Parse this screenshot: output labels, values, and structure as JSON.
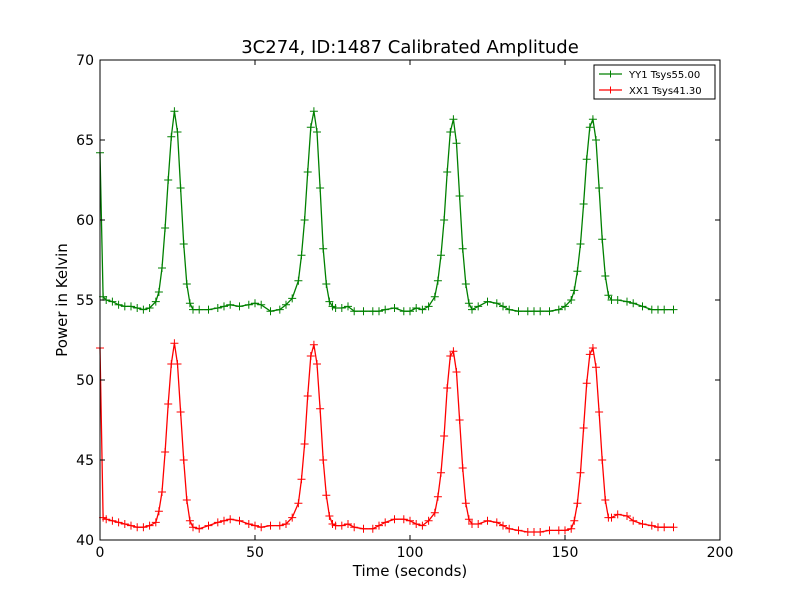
{
  "chart_data": {
    "type": "line",
    "title": "3C274, ID:1487 Calibrated Amplitude",
    "xlabel": "Time (seconds)",
    "ylabel": "Power in Kelvin",
    "xlim": [
      0,
      200
    ],
    "ylim": [
      40,
      70
    ],
    "xticks": [
      0,
      50,
      100,
      150,
      200
    ],
    "yticks": [
      40,
      45,
      50,
      55,
      60,
      65,
      70
    ],
    "grid": false,
    "legend_position": "top-right",
    "series": [
      {
        "name": "YY1 Tsys55.00",
        "color": "#008000",
        "marker": "+",
        "x": [
          0,
          1,
          2,
          4,
          6,
          8,
          10,
          12,
          14,
          16,
          18,
          19,
          20,
          21,
          22,
          23,
          24,
          25,
          26,
          27,
          28,
          29,
          30,
          32,
          35,
          38,
          40,
          42,
          45,
          48,
          50,
          52,
          55,
          58,
          60,
          62,
          64,
          65,
          66,
          67,
          68,
          69,
          70,
          71,
          72,
          73,
          74,
          75,
          76,
          78,
          80,
          82,
          85,
          88,
          90,
          92,
          95,
          98,
          100,
          102,
          104,
          106,
          108,
          109,
          110,
          111,
          112,
          113,
          114,
          115,
          116,
          117,
          118,
          119,
          120,
          122,
          125,
          128,
          130,
          132,
          135,
          138,
          140,
          142,
          145,
          148,
          150,
          152,
          153,
          154,
          155,
          156,
          157,
          158,
          159,
          160,
          161,
          162,
          163,
          164,
          165,
          167,
          170,
          172,
          175,
          178,
          180,
          182,
          185
        ],
        "y": [
          64.2,
          55.2,
          55.0,
          54.9,
          54.7,
          54.6,
          54.6,
          54.5,
          54.4,
          54.5,
          54.9,
          55.5,
          57.0,
          59.5,
          62.5,
          65.2,
          66.8,
          65.5,
          62.0,
          58.5,
          56.0,
          54.8,
          54.4,
          54.4,
          54.4,
          54.5,
          54.6,
          54.7,
          54.6,
          54.7,
          54.8,
          54.7,
          54.3,
          54.4,
          54.7,
          55.1,
          56.2,
          57.8,
          60.0,
          63.0,
          65.8,
          66.8,
          65.5,
          62.0,
          58.2,
          56.0,
          54.9,
          54.6,
          54.5,
          54.5,
          54.6,
          54.3,
          54.3,
          54.3,
          54.3,
          54.4,
          54.5,
          54.3,
          54.3,
          54.5,
          54.4,
          54.6,
          55.2,
          56.2,
          57.8,
          60.0,
          63.0,
          65.5,
          66.3,
          64.8,
          61.5,
          58.2,
          56.0,
          54.8,
          54.4,
          54.6,
          54.9,
          54.8,
          54.6,
          54.4,
          54.3,
          54.3,
          54.3,
          54.3,
          54.3,
          54.4,
          54.6,
          55.0,
          55.6,
          56.8,
          58.5,
          61.0,
          63.8,
          65.8,
          66.3,
          65.0,
          62.0,
          58.8,
          56.5,
          55.3,
          55.0,
          55.0,
          54.9,
          54.8,
          54.6,
          54.4,
          54.4,
          54.4,
          54.4
        ]
      },
      {
        "name": "XX1 Tsys41.30",
        "color": "#ff0000",
        "marker": "+",
        "x": [
          0,
          1,
          2,
          4,
          6,
          8,
          10,
          12,
          14,
          16,
          18,
          19,
          20,
          21,
          22,
          23,
          24,
          25,
          26,
          27,
          28,
          29,
          30,
          32,
          35,
          38,
          40,
          42,
          45,
          48,
          50,
          52,
          55,
          58,
          60,
          62,
          64,
          65,
          66,
          67,
          68,
          69,
          70,
          71,
          72,
          73,
          74,
          75,
          76,
          78,
          80,
          82,
          85,
          88,
          90,
          92,
          95,
          98,
          100,
          102,
          104,
          106,
          108,
          109,
          110,
          111,
          112,
          113,
          114,
          115,
          116,
          117,
          118,
          119,
          120,
          122,
          125,
          128,
          130,
          132,
          135,
          138,
          140,
          142,
          145,
          148,
          150,
          152,
          153,
          154,
          155,
          156,
          157,
          158,
          159,
          160,
          161,
          162,
          163,
          164,
          165,
          167,
          170,
          172,
          175,
          178,
          180,
          182,
          185
        ],
        "y": [
          52.0,
          41.4,
          41.3,
          41.2,
          41.1,
          41.0,
          40.9,
          40.8,
          40.8,
          40.9,
          41.1,
          41.8,
          43.0,
          45.5,
          48.5,
          51.0,
          52.3,
          51.0,
          48.0,
          45.0,
          42.5,
          41.2,
          40.8,
          40.7,
          40.9,
          41.1,
          41.2,
          41.3,
          41.2,
          41.0,
          40.9,
          40.8,
          40.9,
          40.9,
          41.0,
          41.4,
          42.3,
          43.8,
          46.0,
          49.0,
          51.5,
          52.2,
          51.0,
          48.2,
          45.0,
          42.8,
          41.5,
          41.0,
          40.9,
          40.9,
          41.0,
          40.8,
          40.7,
          40.7,
          40.9,
          41.1,
          41.3,
          41.3,
          41.2,
          41.0,
          40.9,
          41.2,
          41.7,
          42.7,
          44.2,
          46.5,
          49.5,
          51.5,
          51.8,
          50.5,
          47.5,
          44.5,
          42.3,
          41.3,
          41.0,
          41.0,
          41.2,
          41.1,
          40.9,
          40.7,
          40.6,
          40.5,
          40.5,
          40.5,
          40.6,
          40.6,
          40.6,
          40.7,
          41.2,
          42.3,
          44.2,
          47.0,
          49.8,
          51.6,
          52.0,
          50.8,
          48.0,
          45.0,
          42.5,
          41.4,
          41.4,
          41.6,
          41.5,
          41.2,
          41.0,
          40.9,
          40.8,
          40.8,
          40.8
        ]
      }
    ]
  }
}
